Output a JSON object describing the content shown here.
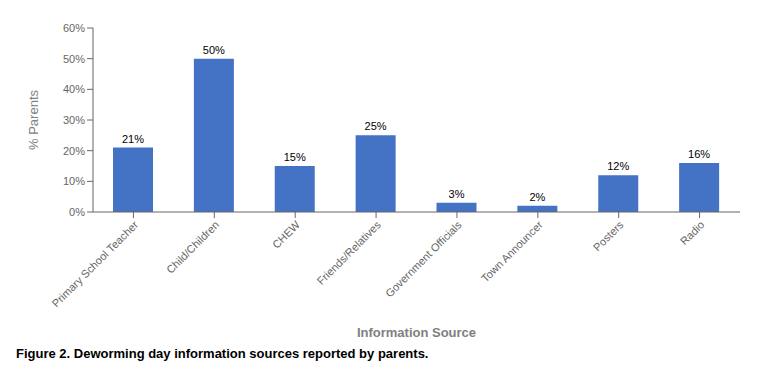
{
  "chart_data": {
    "type": "bar",
    "categories": [
      "Primary School Teacher",
      "Child/Children",
      "CHEW",
      "Friends/Relatives",
      "Government Officials",
      "Town Announcer",
      "Posters",
      "Radio"
    ],
    "values": [
      21,
      50,
      15,
      25,
      3,
      2,
      12,
      16
    ],
    "value_labels": [
      "21%",
      "50%",
      "15%",
      "25%",
      "3%",
      "2%",
      "12%",
      "16%"
    ],
    "data_labels": true,
    "color": "#4472C4",
    "ylabel": "% Parents",
    "xlabel": "Information Source",
    "caption": "Figure 2. Deworming day information sources reported by parents.",
    "ylim": [
      0,
      60
    ],
    "yticks": [
      {
        "value": 0,
        "label": "0%"
      },
      {
        "value": 10,
        "label": "10%"
      },
      {
        "value": 20,
        "label": "20%"
      },
      {
        "value": 30,
        "label": "30%"
      },
      {
        "value": 40,
        "label": "40%"
      },
      {
        "value": 50,
        "label": "50%"
      },
      {
        "value": 60,
        "label": "60%"
      }
    ],
    "grid": false
  }
}
